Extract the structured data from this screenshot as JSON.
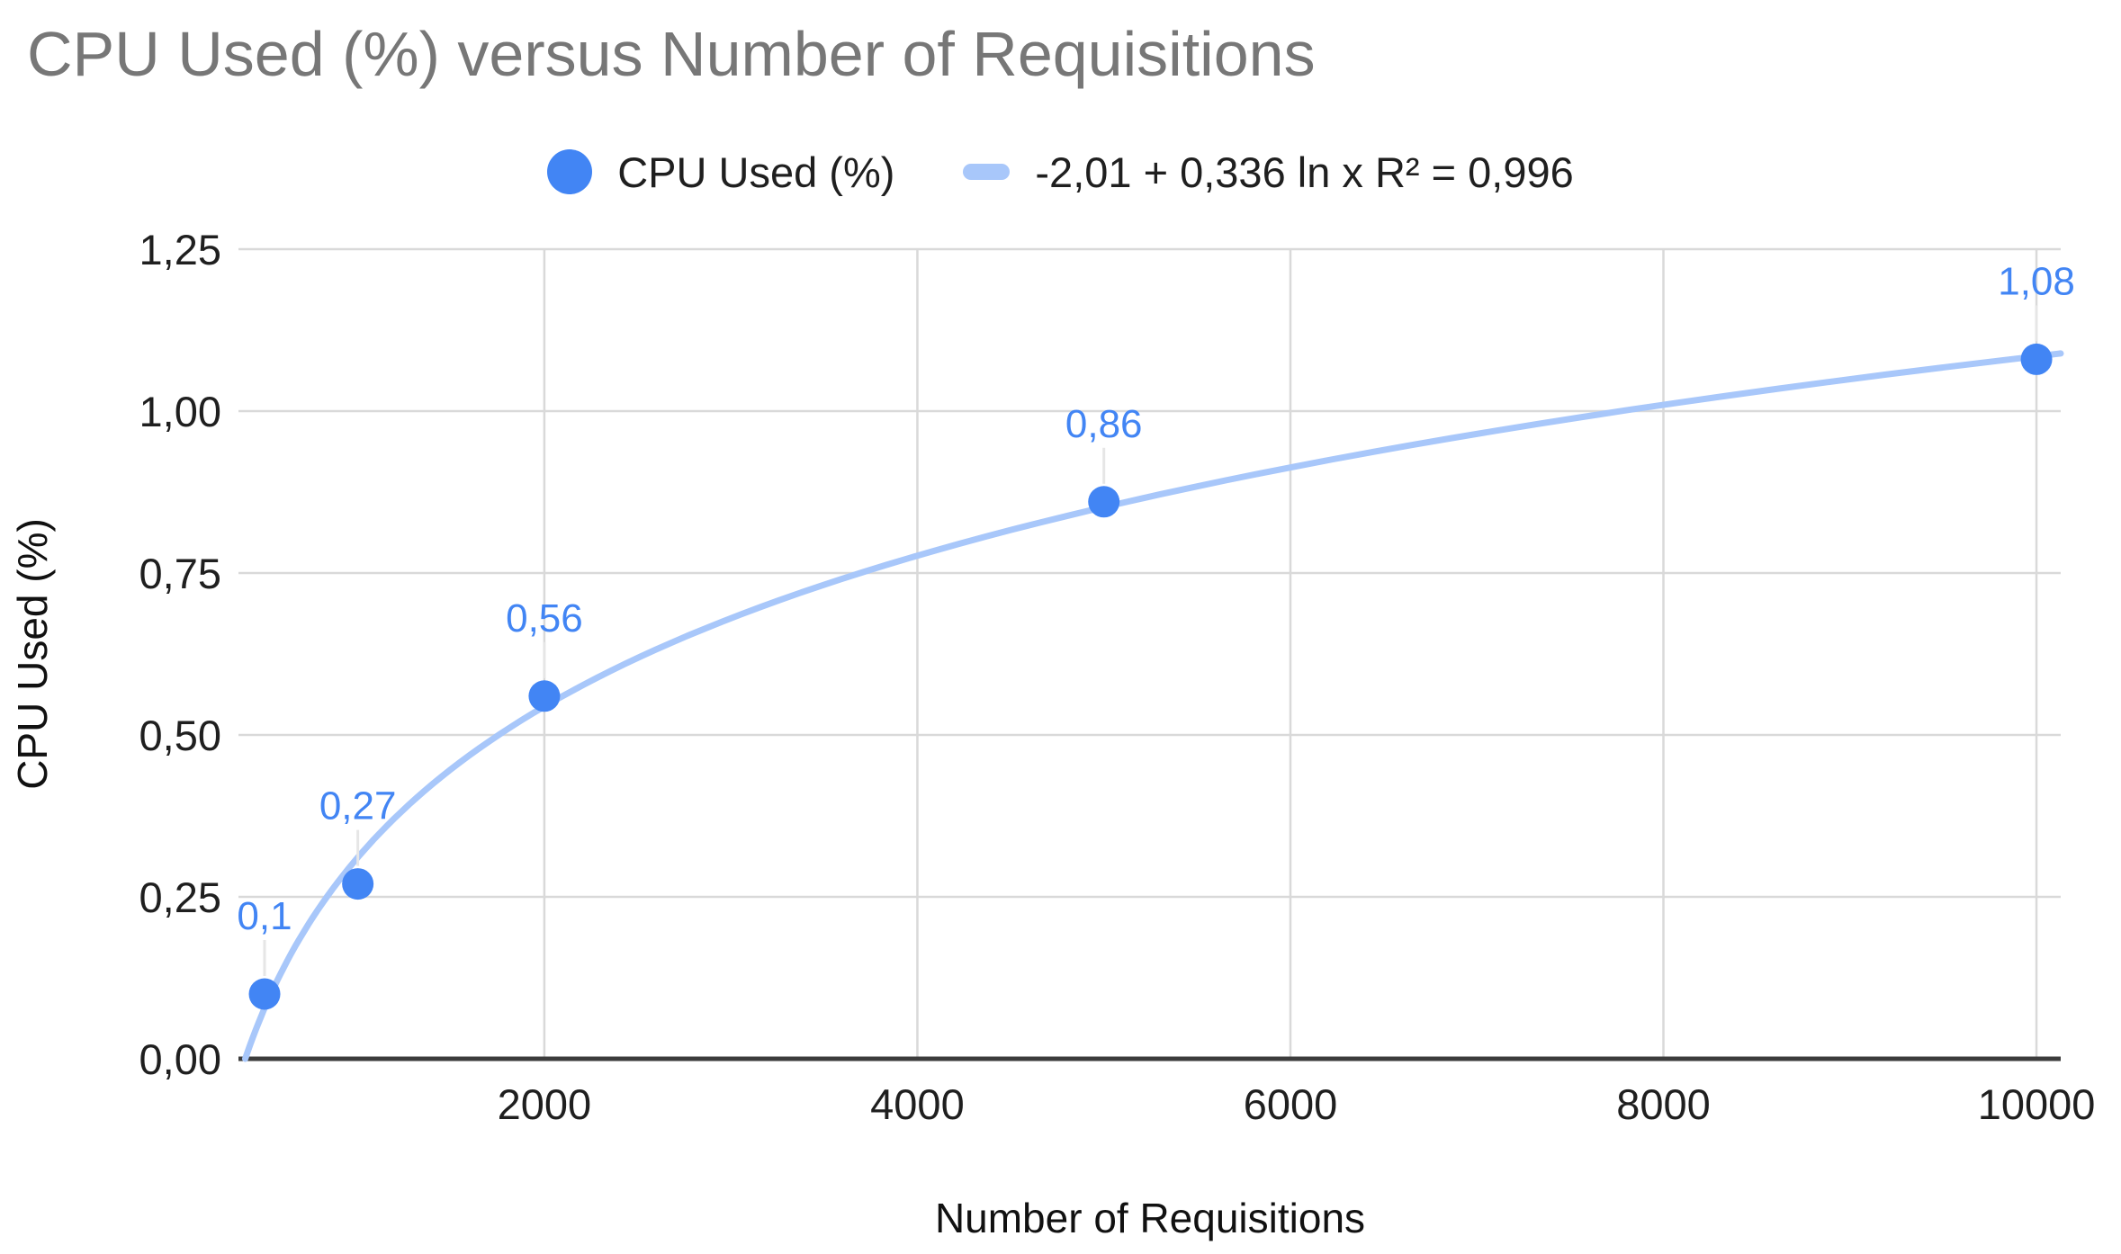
{
  "chart_title": "CPU Used (%) versus Number of Requisitions",
  "colors": {
    "series": "#4285f4",
    "trend": "#a8c7fa",
    "grid": "#d9d9d9",
    "leader": "#e6e6e6",
    "axis-line": "#3c3c3c",
    "tick-text": "#1f1f1f",
    "axis-title-text": "#111111",
    "title-text": "#777777",
    "legend-text": "#1f1f1f",
    "background": "#ffffff"
  },
  "chart_data": {
    "type": "scatter",
    "title": "CPU Used (%) versus Number of Requisitions",
    "xlabel": "Number of Requisitions",
    "ylabel": "CPU Used (%)",
    "grid": true,
    "legend_position": "top",
    "xlim": [
      360,
      10130
    ],
    "ylim": [
      0,
      1.25
    ],
    "series": [
      {
        "name": "CPU Used (%)",
        "points": [
          {
            "x": 500,
            "y": 0.1,
            "label": "0,1"
          },
          {
            "x": 1000,
            "y": 0.27,
            "label": "0,27"
          },
          {
            "x": 2000,
            "y": 0.56,
            "label": "0,56"
          },
          {
            "x": 5000,
            "y": 0.86,
            "label": "0,86"
          },
          {
            "x": 10000,
            "y": 1.08,
            "label": "1,08"
          }
        ]
      }
    ],
    "trendline": {
      "label": "-2,01 + 0,336 ln x R² = 0,996",
      "equation": "y = -2,01 + 0,336 ln x",
      "a": -2.01,
      "b": 0.336,
      "r2": "0,996"
    },
    "x_ticks": [
      {
        "v": 2000,
        "label": "2000"
      },
      {
        "v": 4000,
        "label": "4000"
      },
      {
        "v": 6000,
        "label": "6000"
      },
      {
        "v": 8000,
        "label": "8000"
      },
      {
        "v": 10000,
        "label": "10000"
      }
    ],
    "y_ticks": [
      {
        "v": 0.0,
        "label": "0,00"
      },
      {
        "v": 0.25,
        "label": "0,25"
      },
      {
        "v": 0.5,
        "label": "0,50"
      },
      {
        "v": 0.75,
        "label": "0,75"
      },
      {
        "v": 1.0,
        "label": "1,00"
      },
      {
        "v": 1.25,
        "label": "1,25"
      }
    ]
  }
}
